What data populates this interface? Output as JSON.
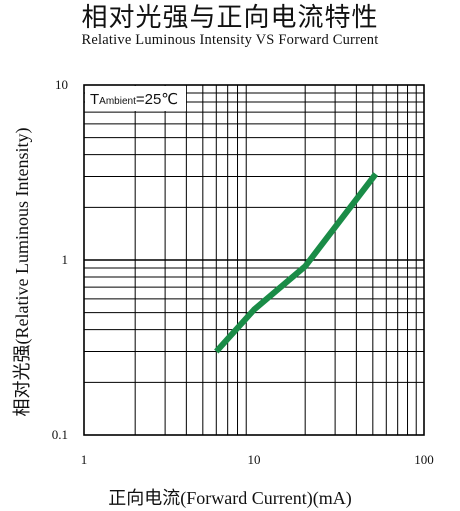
{
  "chart_data": {
    "type": "line",
    "title": "相对光强与正向电流特性",
    "subtitle": "Relative Luminous Intensity VS Forward Current",
    "xlabel": "正向电流(Forward Current)(mA)",
    "ylabel": "相对光强(Relative Luminous Intensity)",
    "x_scale": "log",
    "y_scale": "log",
    "xlim": [
      1,
      100
    ],
    "ylim": [
      0.1,
      10
    ],
    "x_ticks": [
      "1",
      "10",
      "100"
    ],
    "y_ticks": [
      "0.1",
      "1",
      "10"
    ],
    "grid": true,
    "series_color": "#1a8c47",
    "annotation": {
      "text_T": "T",
      "text_sub": "Ambient",
      "text_val": "=25℃"
    },
    "series": [
      {
        "x": [
          6,
          10,
          20,
          52
        ],
        "y": [
          0.3,
          0.52,
          0.92,
          3.1
        ]
      }
    ]
  }
}
